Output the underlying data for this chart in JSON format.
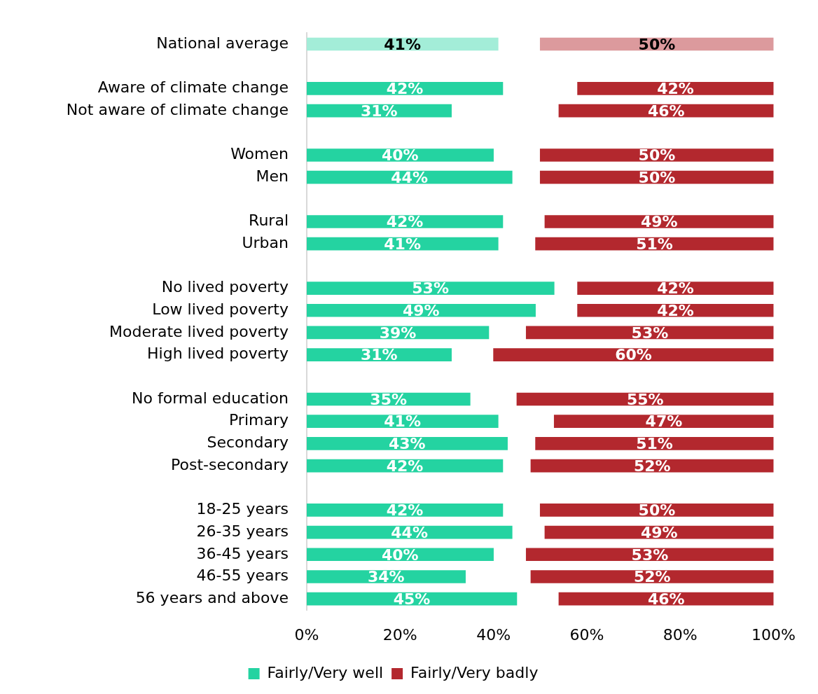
{
  "chart_data": {
    "type": "bar",
    "orientation": "horizontal",
    "categories": [
      "National average",
      null,
      "Aware of climate change",
      "Not aware of climate change",
      null,
      "Women",
      "Men",
      null,
      "Rural",
      "Urban",
      null,
      "No lived poverty",
      "Low lived poverty",
      "Moderate lived poverty",
      "High lived poverty",
      null,
      "No formal education",
      "Primary",
      "Secondary",
      "Post-secondary",
      null,
      "18-25 years",
      "26-35 years",
      "36-45 years",
      "46-55 years",
      "56 years and above"
    ],
    "series": [
      {
        "name": "Fairly/Very well",
        "color": "#24d3a1",
        "colors": [
          "#a3edd8",
          "#24d3a1",
          "#24d3a1",
          "#24d3a1",
          "#24d3a1",
          "#24d3a1",
          "#24d3a1",
          "#24d3a1",
          "#24d3a1",
          "#24d3a1",
          "#24d3a1",
          "#24d3a1",
          "#24d3a1",
          "#24d3a1",
          "#24d3a1",
          "#24d3a1",
          "#24d3a1",
          "#24d3a1",
          "#24d3a1",
          "#24d3a1",
          "#24d3a1",
          "#24d3a1",
          "#24d3a1",
          "#24d3a1",
          "#24d3a1",
          "#24d3a1"
        ],
        "base": [
          0,
          null,
          0,
          0,
          null,
          0,
          0,
          null,
          0,
          0,
          null,
          0,
          0,
          0,
          0,
          null,
          0,
          0,
          0,
          0,
          null,
          0,
          0,
          0,
          0,
          0
        ],
        "values": [
          41,
          null,
          42,
          31,
          null,
          40,
          44,
          null,
          42,
          41,
          null,
          53,
          49,
          39,
          31,
          null,
          35,
          41,
          43,
          42,
          null,
          42,
          44,
          40,
          34,
          45
        ],
        "value_labels": [
          "41%",
          null,
          "42%",
          "31%",
          null,
          "40%",
          "44%",
          null,
          "42%",
          "41%",
          null,
          "53%",
          "49%",
          "39%",
          "31%",
          null,
          "35%",
          "41%",
          "43%",
          "42%",
          null,
          "42%",
          "44%",
          "40%",
          "34%",
          "45%"
        ]
      },
      {
        "name": "Fairly/Very badly",
        "color": "#b3282e",
        "colors": [
          "#dc9a9d",
          "#b3282e",
          "#b3282e",
          "#b3282e",
          "#b3282e",
          "#b3282e",
          "#b3282e",
          "#b3282e",
          "#b3282e",
          "#b3282e",
          "#b3282e",
          "#b3282e",
          "#b3282e",
          "#b3282e",
          "#b3282e",
          "#b3282e",
          "#b3282e",
          "#b3282e",
          "#b3282e",
          "#b3282e",
          "#b3282e",
          "#b3282e",
          "#b3282e",
          "#b3282e",
          "#b3282e",
          "#b3282e"
        ],
        "base": [
          50,
          null,
          58,
          54,
          null,
          50,
          50,
          null,
          51,
          49,
          null,
          58,
          58,
          47,
          40,
          null,
          45,
          53,
          49,
          48,
          null,
          50,
          51,
          47,
          48,
          54
        ],
        "values": [
          50,
          null,
          42,
          46,
          null,
          50,
          50,
          null,
          49,
          51,
          null,
          42,
          42,
          53,
          60,
          null,
          55,
          47,
          51,
          52,
          null,
          50,
          49,
          53,
          52,
          46
        ],
        "value_labels": [
          "50%",
          null,
          "42%",
          "46%",
          null,
          "50%",
          "50%",
          null,
          "49%",
          "51%",
          null,
          "42%",
          "42%",
          "53%",
          "60%",
          null,
          "55%",
          "47%",
          "51%",
          "52%",
          null,
          "50%",
          "49%",
          "53%",
          "52%",
          "46%"
        ]
      }
    ],
    "xlim": [
      0,
      100
    ],
    "xticks": [
      {
        "value": 0,
        "label": "0%"
      },
      {
        "value": 20,
        "label": "20%"
      },
      {
        "value": 40,
        "label": "40%"
      },
      {
        "value": 60,
        "label": "60%"
      },
      {
        "value": 80,
        "label": "80%"
      },
      {
        "value": 100,
        "label": "100%"
      }
    ],
    "legend": "bottom"
  }
}
